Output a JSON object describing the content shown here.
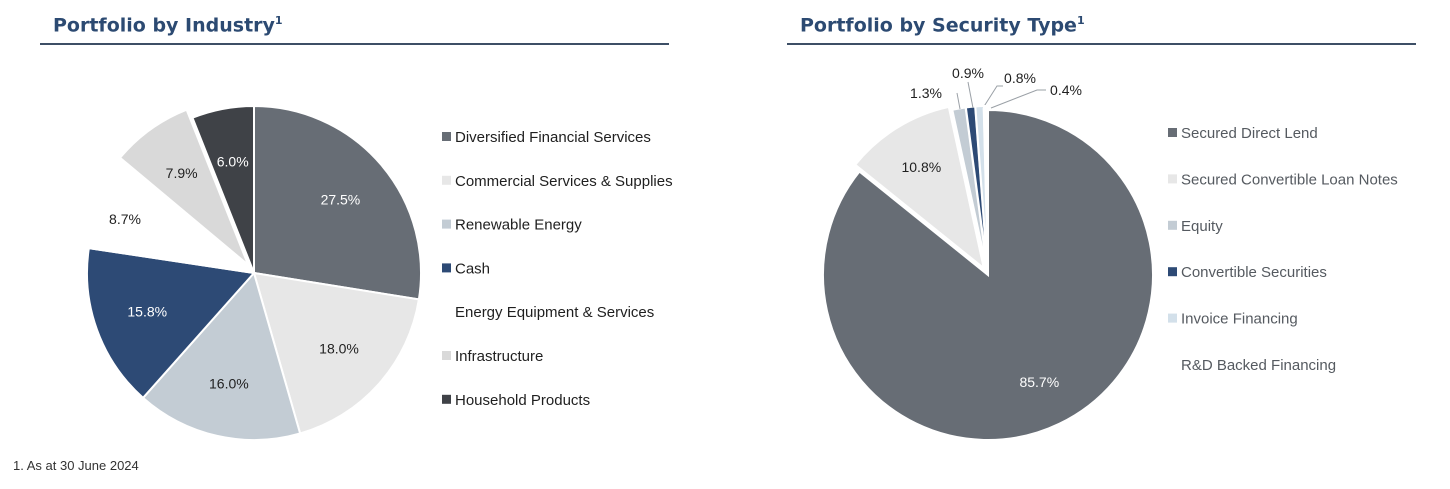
{
  "left_panel": {
    "title": "Portfolio by Industry",
    "title_sup": "1"
  },
  "right_panel": {
    "title": "Portfolio by Security Type",
    "title_sup": "1"
  },
  "footnote": "1. As at 30 June 2024",
  "chart_data": [
    {
      "type": "pie",
      "title": "Portfolio by Industry",
      "legend_position": "right",
      "slices": [
        {
          "label": "Diversified Financial Services",
          "value": 27.5,
          "display": "27.5%",
          "color": "#676d75",
          "legend_swatch": true
        },
        {
          "label": "Commercial Services & Supplies",
          "value": 18.0,
          "display": "18.0%",
          "color": "#e7e7e7",
          "legend_swatch": true
        },
        {
          "label": "Renewable Energy",
          "value": 16.0,
          "display": "16.0%",
          "color": "#c3ccd4",
          "legend_swatch": true
        },
        {
          "label": "Cash",
          "value": 15.8,
          "display": "15.8%",
          "color": "#2d4a75",
          "legend_swatch": true
        },
        {
          "label": "Energy Equipment & Services",
          "value": 8.7,
          "display": "8.7%",
          "color": "#ffffff",
          "legend_swatch": false
        },
        {
          "label": "Infrastructure",
          "value": 7.9,
          "display": "7.9%",
          "color": "#d9d9d9",
          "legend_swatch": true
        },
        {
          "label": "Household Products",
          "value": 6.0,
          "display": "6.0%",
          "color": "#3f4247",
          "legend_swatch": true
        }
      ]
    },
    {
      "type": "pie",
      "title": "Portfolio by Security Type",
      "legend_position": "right",
      "slices": [
        {
          "label": "Secured Direct Lend",
          "value": 85.7,
          "display": "85.7%",
          "color": "#676d75",
          "legend_swatch": true
        },
        {
          "label": "Secured Convertible Loan Notes",
          "value": 10.8,
          "display": "10.8%",
          "color": "#e7e7e7",
          "legend_swatch": true
        },
        {
          "label": "Equity",
          "value": 1.3,
          "display": "1.3%",
          "color": "#c3ccd4",
          "legend_swatch": true
        },
        {
          "label": "Convertible Securities",
          "value": 0.9,
          "display": "0.9%",
          "color": "#2d4a75",
          "legend_swatch": true
        },
        {
          "label": "Invoice Financing",
          "value": 0.8,
          "display": "0.8%",
          "color": "#d3e0ea",
          "legend_swatch": true
        },
        {
          "label": "R&D Backed Financing",
          "value": 0.4,
          "display": "0.4%",
          "color": "#ffffff",
          "legend_swatch": false
        }
      ]
    }
  ]
}
